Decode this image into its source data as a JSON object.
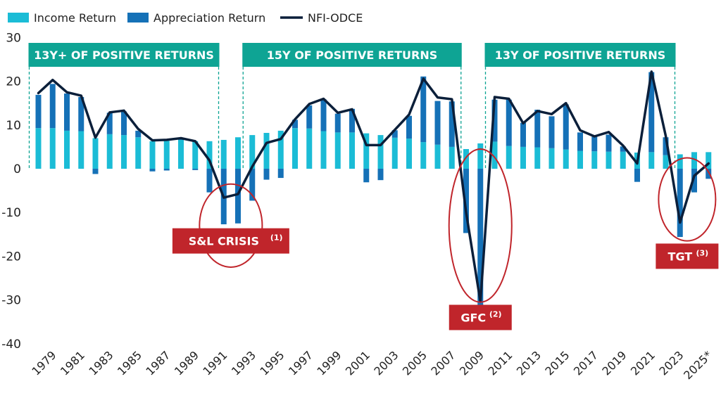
{
  "colors": {
    "income": "#1bbcd6",
    "appreciation": "#1571b7",
    "line": "#0b1f3a",
    "banner": "#0ea494",
    "crisis": "#c0252b",
    "circle": "#c0252b"
  },
  "legend": {
    "income": "Income Return",
    "appreciation": "Appreciation Return",
    "line": "NFI-ODCE"
  },
  "banners": [
    {
      "text": "13Y+ OF POSITIVE RETURNS",
      "start": 1978,
      "end": 1990
    },
    {
      "text": "15Y OF POSITIVE RETURNS",
      "start": 1993,
      "end": 2007
    },
    {
      "text": "13Y OF POSITIVE RETURNS",
      "start": 2010,
      "end": 2022
    }
  ],
  "crises": [
    {
      "label": "S&L CRISIS",
      "note": "(1)",
      "center_year": 1991.5,
      "center_y": -13,
      "rx_years": 2.2,
      "ry": 9.5,
      "label_year": 1991.5,
      "label_y": -16.5
    },
    {
      "label": "GFC",
      "note": "(2)",
      "center_year": 2009,
      "center_y": -13,
      "rx_years": 2.2,
      "ry": 17.5,
      "label_year": 2009,
      "label_y": -34
    },
    {
      "label": "TGT",
      "note": "(3)",
      "center_year": 2023.5,
      "center_y": -7,
      "rx_years": 2,
      "ry": 9.5,
      "label_year": 2023.5,
      "label_y": -20
    }
  ],
  "chart_data": {
    "type": "bar",
    "title": "",
    "xlabel": "",
    "ylabel": "",
    "ylim": [
      -40,
      30
    ],
    "yticks": [
      -40,
      -30,
      -20,
      -10,
      0,
      10,
      20,
      30
    ],
    "legend_position": "top-left",
    "grid": false,
    "categories": [
      "1978",
      "1979",
      "1980",
      "1981",
      "1982",
      "1983",
      "1984",
      "1985",
      "1986",
      "1987",
      "1988",
      "1989",
      "1990",
      "1991",
      "1992",
      "1993",
      "1994",
      "1995",
      "1996",
      "1997",
      "1998",
      "1999",
      "2000",
      "2001",
      "2002",
      "2003",
      "2004",
      "2005",
      "2006",
      "2007",
      "2008",
      "2009",
      "2010",
      "2011",
      "2012",
      "2013",
      "2014",
      "2015",
      "2016",
      "2017",
      "2018",
      "2019",
      "2020",
      "2021",
      "2022",
      "2023",
      "2024",
      "2025*"
    ],
    "tick_labels": [
      "1979",
      "1981",
      "1983",
      "1985",
      "1987",
      "1989",
      "1991",
      "1993",
      "1995",
      "1997",
      "1999",
      "2001",
      "2003",
      "2005",
      "2007",
      "2009",
      "2011",
      "2013",
      "2015",
      "2017",
      "2019",
      "2021",
      "2023",
      "2025*"
    ],
    "series": [
      {
        "name": "Income Return",
        "kind": "bar",
        "values": [
          9.3,
          9.3,
          8.7,
          8.6,
          7.0,
          7.9,
          7.7,
          7.2,
          6.3,
          6.4,
          6.6,
          6.3,
          6.3,
          6.6,
          7.2,
          7.7,
          8.2,
          8.7,
          9.3,
          9.2,
          8.6,
          8.3,
          8.3,
          8.1,
          7.7,
          7.1,
          6.9,
          6.1,
          5.5,
          5.0,
          4.5,
          5.8,
          6.2,
          5.2,
          5.0,
          4.9,
          4.7,
          4.4,
          4.1,
          4.0,
          3.9,
          3.9,
          3.7,
          3.8,
          3.1,
          3.3,
          3.8,
          3.8
        ]
      },
      {
        "name": "Appreciation Return",
        "kind": "bar",
        "values": [
          7.6,
          10.1,
          8.5,
          7.8,
          -1.2,
          4.9,
          5.4,
          1.5,
          -0.6,
          -0.4,
          0.2,
          -0.3,
          -5.4,
          -12.7,
          -12.5,
          -7.3,
          -2.5,
          -2.1,
          1.9,
          5.3,
          7.3,
          4.3,
          5.4,
          -3.1,
          -2.6,
          1.7,
          5.2,
          15.0,
          10.0,
          10.4,
          -14.7,
          -33.0,
          9.6,
          10.6,
          5.5,
          8.6,
          7.3,
          10.3,
          4.2,
          3.3,
          3.9,
          1.2,
          -3.0,
          18.3,
          4.1,
          -15.6,
          -5.4,
          -2.3
        ]
      },
      {
        "name": "NFI-ODCE",
        "kind": "line",
        "values": [
          17.3,
          20.3,
          17.5,
          16.7,
          7.1,
          12.9,
          13.3,
          9.1,
          6.5,
          6.6,
          7.0,
          6.3,
          1.9,
          -6.6,
          -5.8,
          0.5,
          5.9,
          6.8,
          11.3,
          14.8,
          16.0,
          12.8,
          13.6,
          5.4,
          5.4,
          8.9,
          12.4,
          20.6,
          16.3,
          15.9,
          -10.0,
          -30.4,
          16.4,
          16.0,
          10.4,
          13.2,
          12.5,
          15.0,
          8.8,
          7.4,
          8.4,
          5.3,
          1.2,
          22.2,
          7.5,
          -12.3,
          -1.6,
          1.2
        ]
      }
    ]
  }
}
